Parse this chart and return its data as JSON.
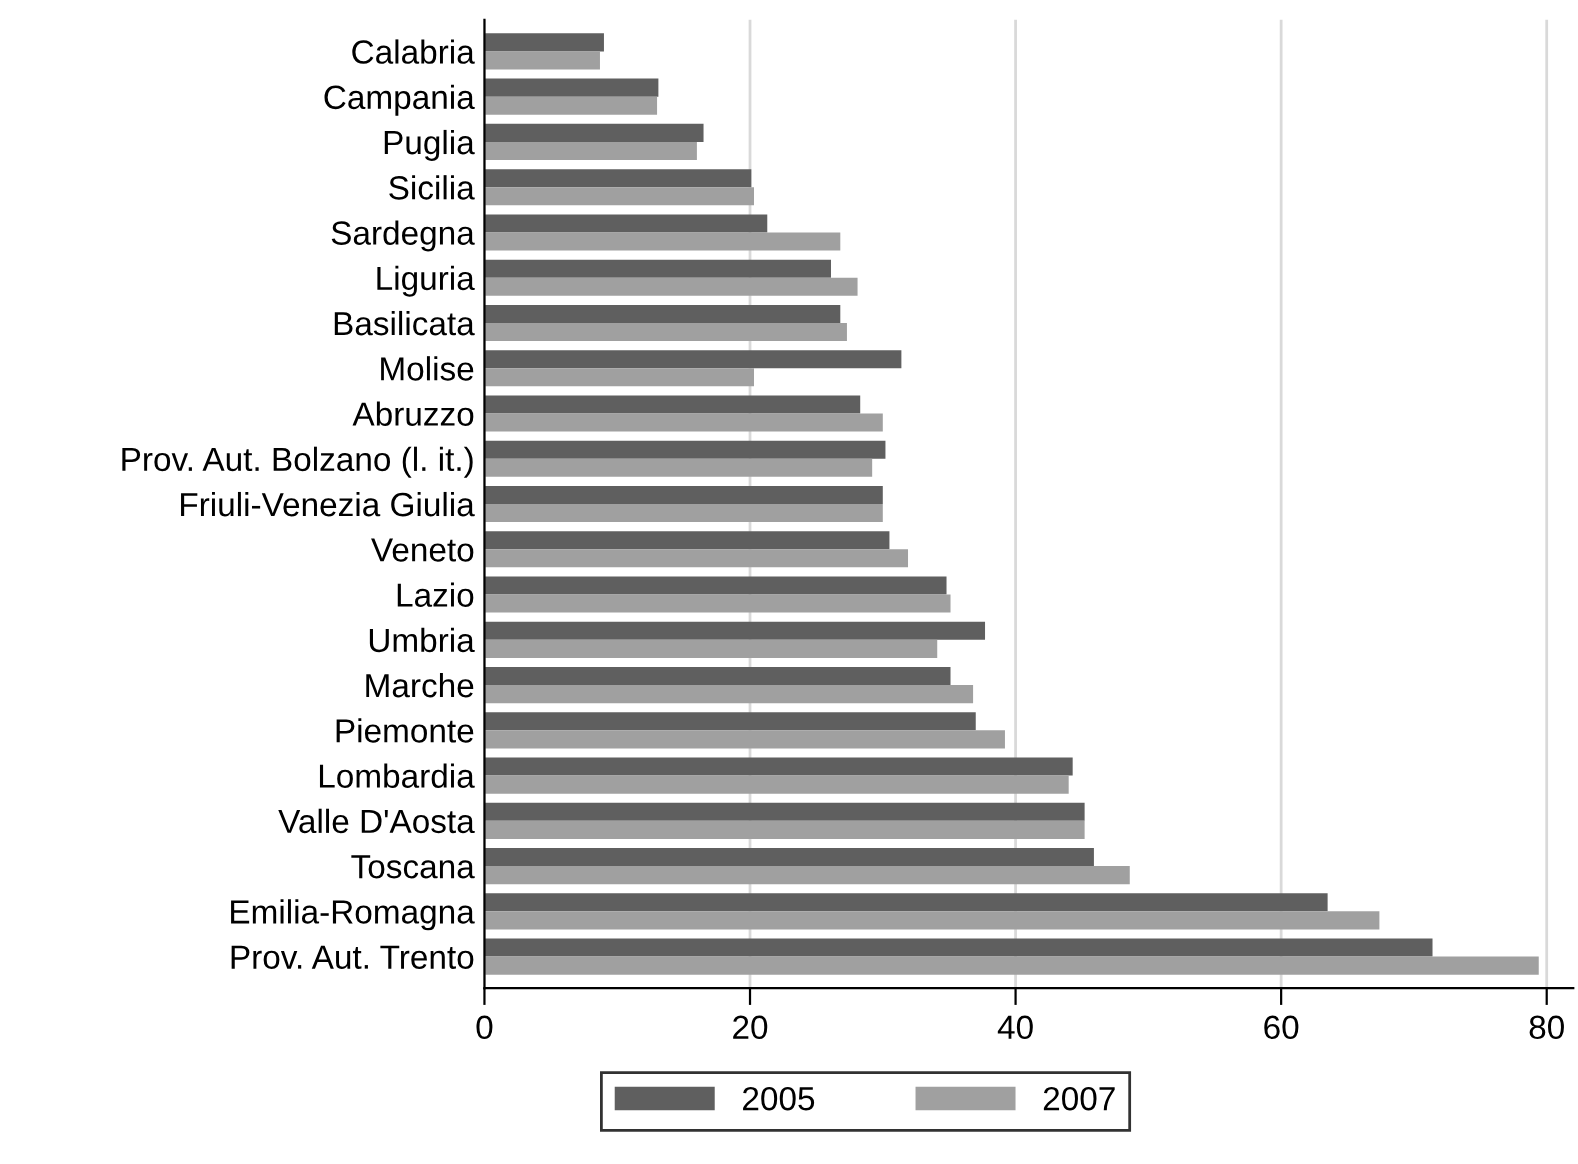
{
  "chart_data": {
    "type": "bar",
    "orientation": "horizontal",
    "categories": [
      "Calabria",
      "Campania",
      "Puglia",
      "Sicilia",
      "Sardegna",
      "Liguria",
      "Basilicata",
      "Molise",
      "Abruzzo",
      "Prov. Aut. Bolzano (l. it.)",
      "Friuli-Venezia Giulia",
      "Veneto",
      "Lazio",
      "Umbria",
      "Marche",
      "Piemonte",
      "Lombardia",
      "Valle D'Aosta",
      "Toscana",
      "Emilia-Romagna",
      "Prov. Aut. Trento"
    ],
    "series": [
      {
        "name": "2005",
        "color": "#5f5f5f",
        "values": [
          9.0,
          13.1,
          16.5,
          20.1,
          21.3,
          26.1,
          26.8,
          31.4,
          28.3,
          30.2,
          30.0,
          30.5,
          34.8,
          37.7,
          35.1,
          37.0,
          44.3,
          45.2,
          45.9,
          63.5,
          71.4
        ]
      },
      {
        "name": "2007",
        "color": "#a0a0a0",
        "values": [
          8.7,
          13.0,
          16.0,
          20.3,
          26.8,
          28.1,
          27.3,
          20.3,
          30.0,
          29.2,
          30.0,
          31.9,
          35.1,
          34.1,
          36.8,
          39.2,
          44.0,
          45.2,
          48.6,
          67.4,
          79.4
        ]
      }
    ],
    "xlim": [
      0,
      82
    ],
    "xticks": [
      0,
      20,
      40,
      60,
      80
    ],
    "grid": "x",
    "legend": "bottom"
  }
}
